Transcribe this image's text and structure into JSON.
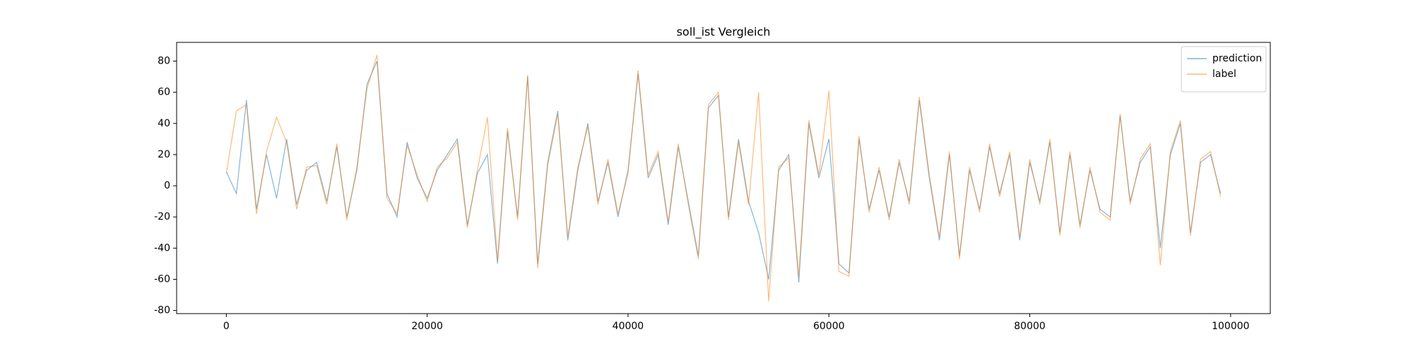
{
  "chart_data": {
    "type": "line",
    "title": "soll_ist Vergleich",
    "title_color": "#ff0000",
    "x": [
      0,
      1000,
      2000,
      3000,
      4000,
      5000,
      6000,
      7000,
      8000,
      9000,
      10000,
      11000,
      12000,
      13000,
      14000,
      15000,
      16000,
      17000,
      18000,
      19000,
      20000,
      21000,
      22000,
      23000,
      24000,
      25000,
      26000,
      27000,
      28000,
      29000,
      30000,
      31000,
      32000,
      33000,
      34000,
      35000,
      36000,
      37000,
      38000,
      39000,
      40000,
      41000,
      42000,
      43000,
      44000,
      45000,
      46000,
      47000,
      48000,
      49000,
      50000,
      51000,
      52000,
      53000,
      54000,
      55000,
      56000,
      57000,
      58000,
      59000,
      60000,
      61000,
      62000,
      63000,
      64000,
      65000,
      66000,
      67000,
      68000,
      69000,
      70000,
      71000,
      72000,
      73000,
      74000,
      75000,
      76000,
      77000,
      78000,
      79000,
      80000,
      81000,
      82000,
      83000,
      84000,
      85000,
      86000,
      87000,
      88000,
      89000,
      90000,
      91000,
      92000,
      93000,
      94000,
      95000,
      96000,
      97000,
      98000,
      99000
    ],
    "series": [
      {
        "name": "prediction",
        "color": "#1f77b4",
        "values": [
          9,
          -5,
          55,
          -15,
          20,
          -8,
          30,
          -12,
          10,
          15,
          -10,
          25,
          -20,
          10,
          65,
          80,
          -5,
          -20,
          28,
          5,
          -8,
          10,
          20,
          30,
          -25,
          8,
          20,
          -50,
          35,
          -20,
          70,
          -50,
          15,
          48,
          -35,
          10,
          40,
          -10,
          15,
          -20,
          10,
          72,
          5,
          20,
          -25,
          25,
          -10,
          -45,
          50,
          58,
          -20,
          30,
          -10,
          -30,
          -60,
          10,
          20,
          -62,
          40,
          5,
          30,
          -50,
          -56,
          30,
          -15,
          10,
          -20,
          15,
          -10,
          55,
          5,
          -35,
          20,
          -45,
          10,
          -15,
          25,
          -5,
          20,
          -35,
          15,
          -10,
          28,
          -30,
          20,
          -25,
          10,
          -15,
          -20,
          45,
          -10,
          15,
          25,
          -40,
          20,
          40,
          -30,
          15,
          20,
          -5
        ]
      },
      {
        "name": "label",
        "color": "#ff7f0e",
        "values": [
          8,
          48,
          52,
          -18,
          22,
          44,
          28,
          -15,
          12,
          13,
          -12,
          27,
          -22,
          12,
          62,
          84,
          -8,
          -18,
          26,
          7,
          -10,
          12,
          18,
          28,
          -27,
          10,
          44,
          -48,
          37,
          -22,
          71,
          -53,
          13,
          46,
          -33,
          12,
          38,
          -12,
          17,
          -18,
          8,
          74,
          7,
          22,
          -23,
          27,
          -12,
          -47,
          52,
          60,
          -22,
          28,
          -12,
          60,
          -74,
          12,
          18,
          -58,
          42,
          7,
          61,
          -55,
          -58,
          32,
          -17,
          12,
          -22,
          17,
          -12,
          57,
          7,
          -33,
          22,
          -47,
          12,
          -17,
          27,
          -7,
          22,
          -33,
          17,
          -12,
          30,
          -32,
          22,
          -27,
          12,
          -17,
          -22,
          46,
          -12,
          17,
          27,
          -51,
          22,
          42,
          -32,
          17,
          22,
          -7
        ]
      }
    ],
    "xlim": [
      -4950,
      103950
    ],
    "ylim": [
      -82,
      92
    ],
    "xticks": [
      0,
      20000,
      40000,
      60000,
      80000,
      100000
    ],
    "yticks": [
      -80,
      -60,
      -40,
      -20,
      0,
      20,
      40,
      60,
      80
    ],
    "legend": "upper right",
    "grid": false
  }
}
